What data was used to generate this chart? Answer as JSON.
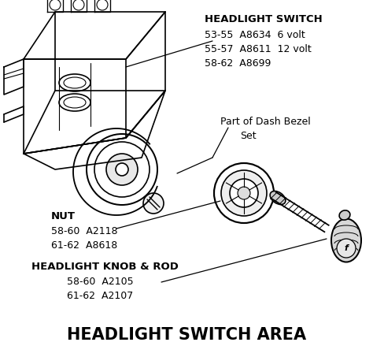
{
  "title": "HEADLIGHT SWITCH AREA",
  "title_fontsize": 15,
  "title_fontweight": "bold",
  "background_color": "#ffffff",
  "text_color": "#000000",
  "label_hs_header": "HEADLIGHT SWITCH",
  "label_hs_lines": [
    "53-55  A8634  6 volt",
    "55-57  A8611  12 volt",
    "58-62  A8699"
  ],
  "label_bezel_line1": "Part of Dash Bezel",
  "label_bezel_line2": "Set",
  "label_nut_header": "NUT",
  "label_nut_lines": [
    "58-60  A2118",
    "61-62  A8618"
  ],
  "label_knob_header": "HEADLIGHT KNOB & ROD",
  "label_knob_lines": [
    "58-60  A2105",
    "61-62  A2107"
  ]
}
